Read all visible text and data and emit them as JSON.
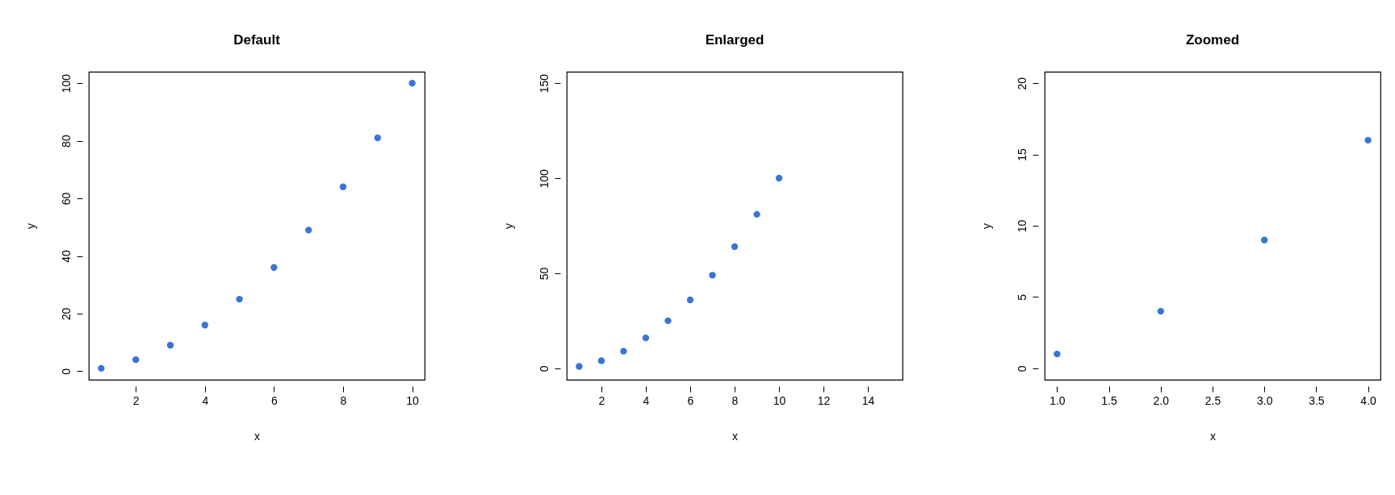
{
  "chart_data": [
    {
      "type": "scatter",
      "title": "Default",
      "xlabel": "x",
      "ylabel": "y",
      "marker": "circle",
      "grid": false,
      "x": [
        1,
        2,
        3,
        4,
        5,
        6,
        7,
        8,
        9,
        10
      ],
      "series": [
        {
          "color": "#3875d7",
          "values": [
            1,
            4,
            9,
            16,
            25,
            36,
            49,
            64,
            81,
            100
          ]
        }
      ],
      "xlim": [
        0.64,
        10.36
      ],
      "ylim": [
        -2.96,
        103.96
      ],
      "xticks": [
        2,
        4,
        6,
        8,
        10
      ],
      "yticks": [
        0,
        20,
        40,
        60,
        80,
        100
      ]
    },
    {
      "type": "scatter",
      "title": "Enlarged",
      "xlabel": "x",
      "ylabel": "y",
      "marker": "circle",
      "grid": false,
      "x": [
        1,
        2,
        3,
        4,
        5,
        6,
        7,
        8,
        9,
        10
      ],
      "series": [
        {
          "color": "#3875d7",
          "values": [
            1,
            4,
            9,
            16,
            25,
            36,
            49,
            64,
            81,
            100
          ]
        }
      ],
      "xlim": [
        0.44,
        15.56
      ],
      "ylim": [
        -6,
        156
      ],
      "xticks": [
        2,
        4,
        6,
        8,
        10,
        12,
        14
      ],
      "yticks": [
        0,
        50,
        100,
        150
      ]
    },
    {
      "type": "scatter",
      "title": "Zoomed",
      "xlabel": "x",
      "ylabel": "y",
      "marker": "circle",
      "grid": false,
      "x": [
        1,
        2,
        3,
        4
      ],
      "series": [
        {
          "color": "#3875d7",
          "values": [
            1,
            4,
            9,
            16
          ]
        }
      ],
      "xlim": [
        0.88,
        4.12
      ],
      "ylim": [
        -0.8,
        20.8
      ],
      "xticks": [
        {
          "value": 1,
          "label": "1.0"
        },
        1.5,
        {
          "value": 2,
          "label": "2.0"
        },
        2.5,
        {
          "value": 3,
          "label": "3.0"
        },
        3.5,
        {
          "value": 4,
          "label": "4.0"
        }
      ],
      "yticks": [
        0,
        5,
        10,
        15,
        20
      ]
    }
  ]
}
